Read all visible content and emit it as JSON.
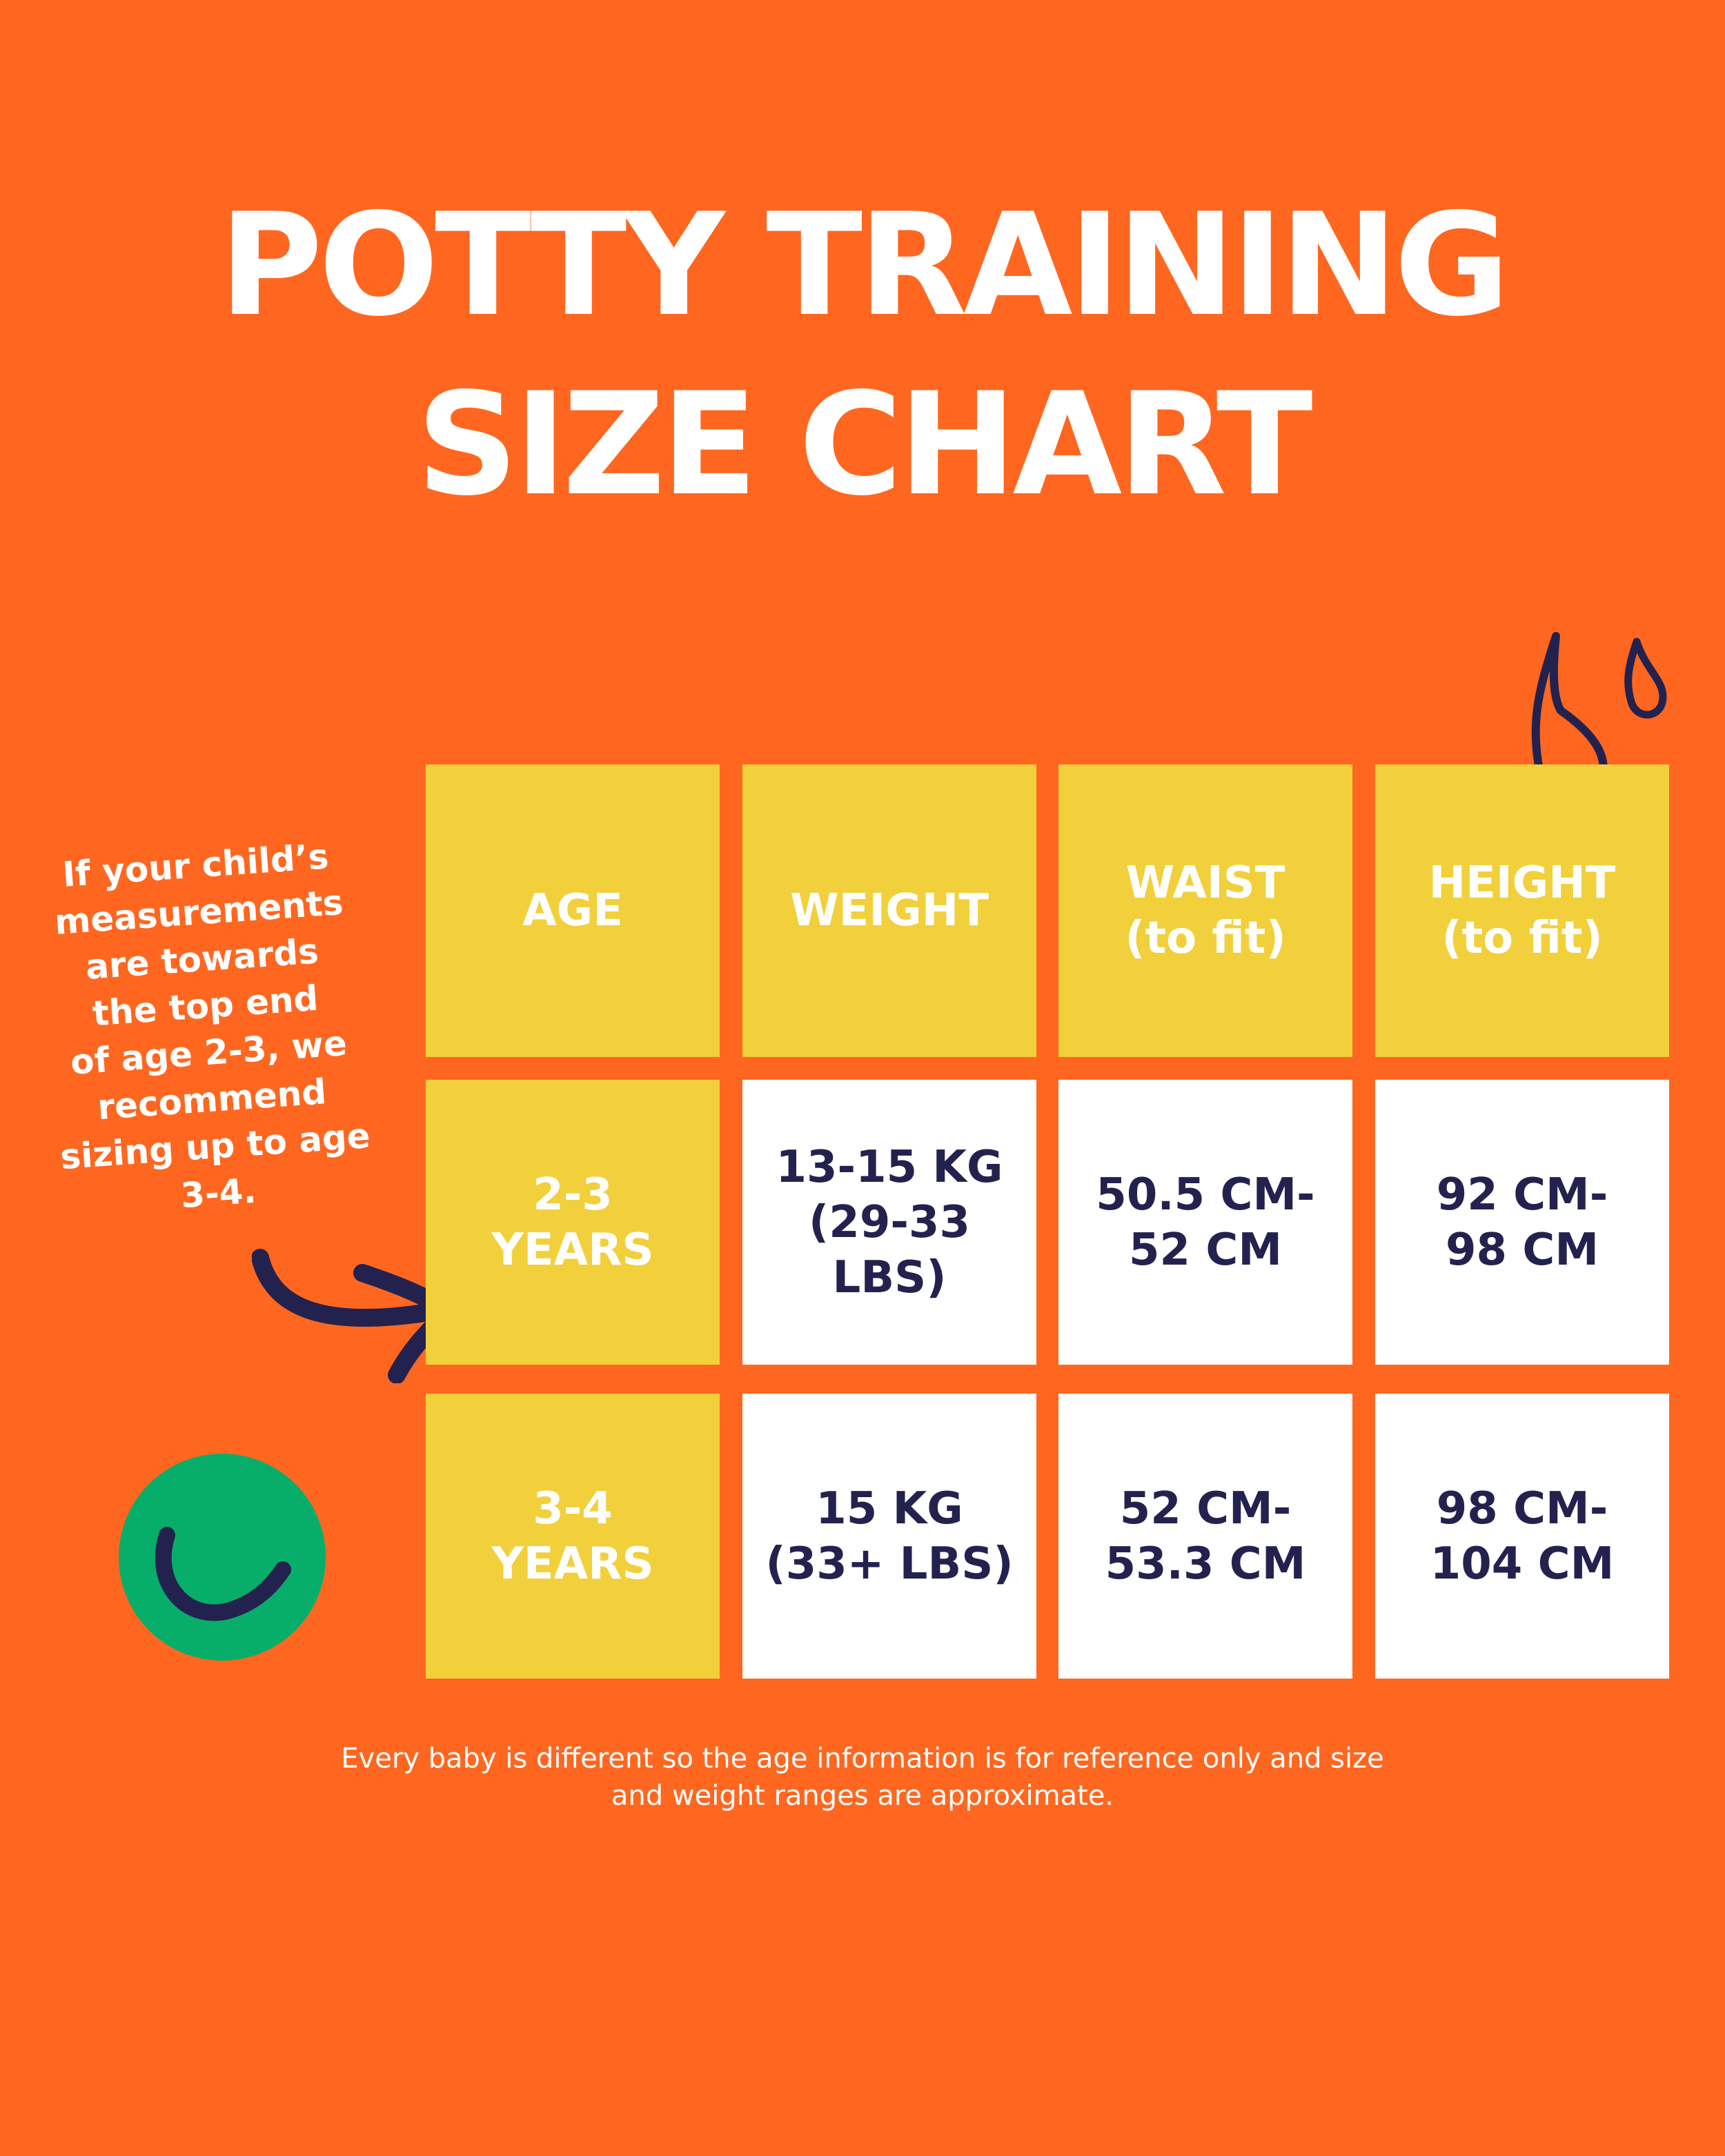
{
  "title": {
    "line1": "POTTY TRAINING",
    "line2": "SIZE CHART"
  },
  "side_note": "If your child’s\nmeasurements\nare towards\nthe top end\nof age 2-3, we\nrecommend\nsizing up to age\n3-4.",
  "table": {
    "headers": {
      "age": "AGE",
      "weight": "WEIGHT",
      "waist": "WAIST\n(to fit)",
      "height": "HEIGHT\n(to fit)"
    },
    "rows": [
      {
        "age": "2-3\nYEARS",
        "weight": "13-15 KG\n(29-33 LBS)",
        "waist": "50.5 CM-\n52 CM",
        "height": "92 CM-\n98 CM"
      },
      {
        "age": "3-4\nYEARS",
        "weight": "15 KG\n(33+ LBS)",
        "waist": "52 CM-\n53.3 CM",
        "height": "98 CM-\n104 CM"
      }
    ]
  },
  "footnote": "Every baby is different so the age information is for reference only and size\nand weight ranges are approximate.",
  "colors": {
    "background": "#FF6720",
    "yellow": "#F2D03B",
    "navy": "#23224F",
    "green": "#06AE6A",
    "white": "#FFFFFF"
  },
  "icons": [
    "drops-icon",
    "arrow-icon",
    "smiley-icon"
  ]
}
